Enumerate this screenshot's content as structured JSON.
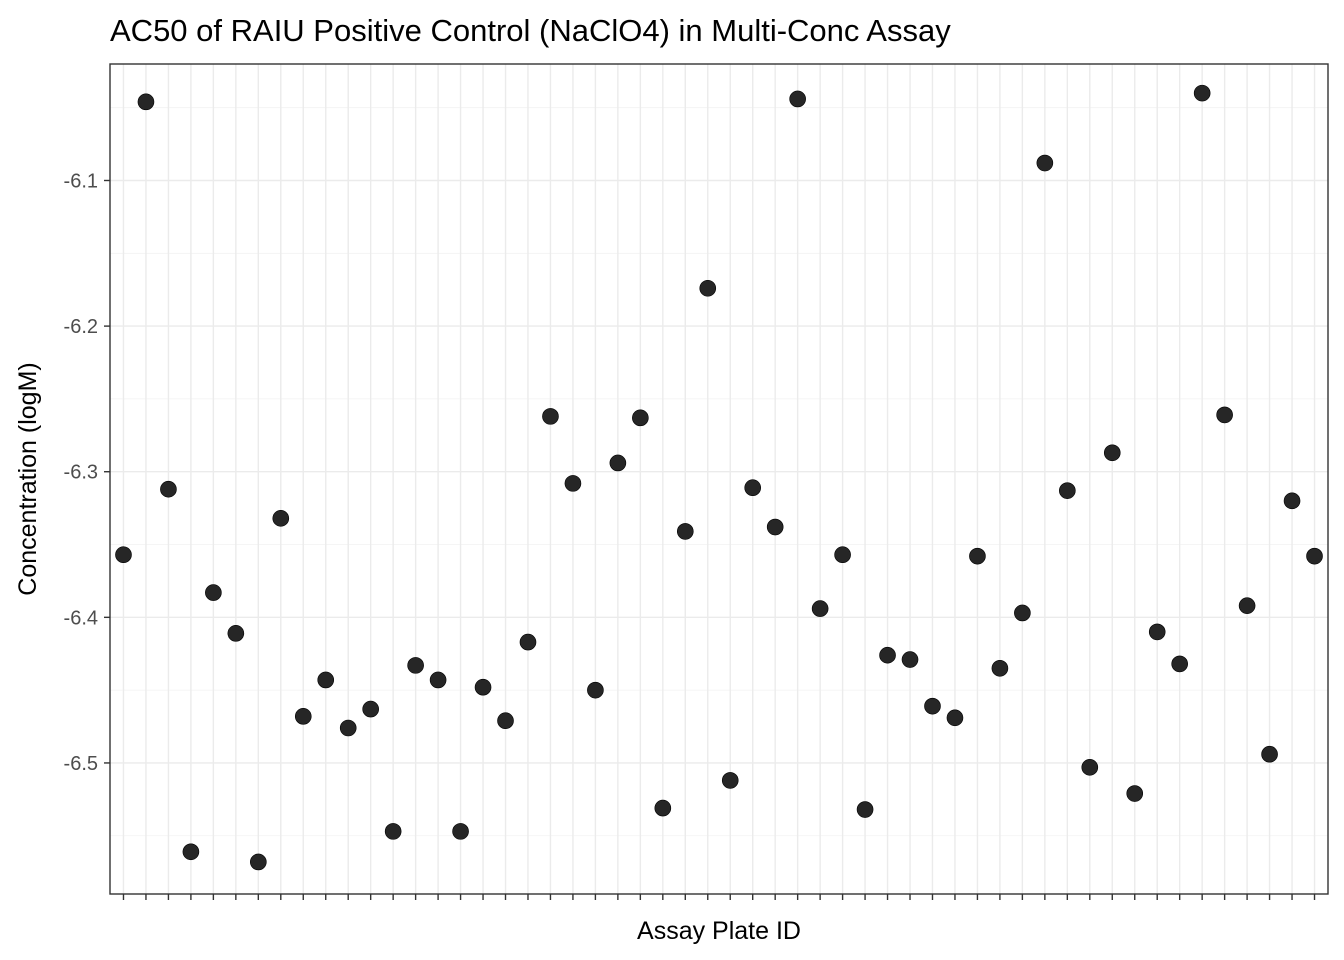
{
  "chart_data": {
    "type": "scatter",
    "title": "AC50 of RAIU Positive Control (NaClO4) in Multi-Conc Assay",
    "xlabel": "Assay Plate ID",
    "ylabel": "Concentration (logM)",
    "ylim": [
      -6.59,
      -6.02
    ],
    "yticks": [
      -6.1,
      -6.2,
      -6.3,
      -6.4,
      -6.5
    ],
    "ytick_labels": [
      "-6.1",
      "-6.2",
      "-6.3",
      "-6.4",
      "-6.5"
    ],
    "grid": true,
    "x_tick_labels_shown": false,
    "values": [
      -6.357,
      -6.046,
      -6.312,
      -6.561,
      -6.383,
      -6.411,
      -6.568,
      -6.332,
      -6.468,
      -6.443,
      -6.476,
      -6.463,
      -6.547,
      -6.433,
      -6.443,
      -6.547,
      -6.448,
      -6.471,
      -6.417,
      -6.262,
      -6.308,
      -6.45,
      -6.294,
      -6.263,
      -6.531,
      -6.341,
      -6.174,
      -6.512,
      -6.311,
      -6.338,
      -6.044,
      -6.394,
      -6.357,
      -6.532,
      -6.426,
      -6.429,
      -6.461,
      -6.469,
      -6.358,
      -6.435,
      -6.397,
      -6.088,
      -6.313,
      -6.503,
      -6.287,
      -6.521,
      -6.41,
      -6.432,
      -6.04,
      -6.261,
      -6.392,
      -6.494,
      -6.32,
      -6.358
    ],
    "colors": {
      "point": "#262626",
      "grid": "#ebebeb",
      "border": "#333333"
    }
  }
}
